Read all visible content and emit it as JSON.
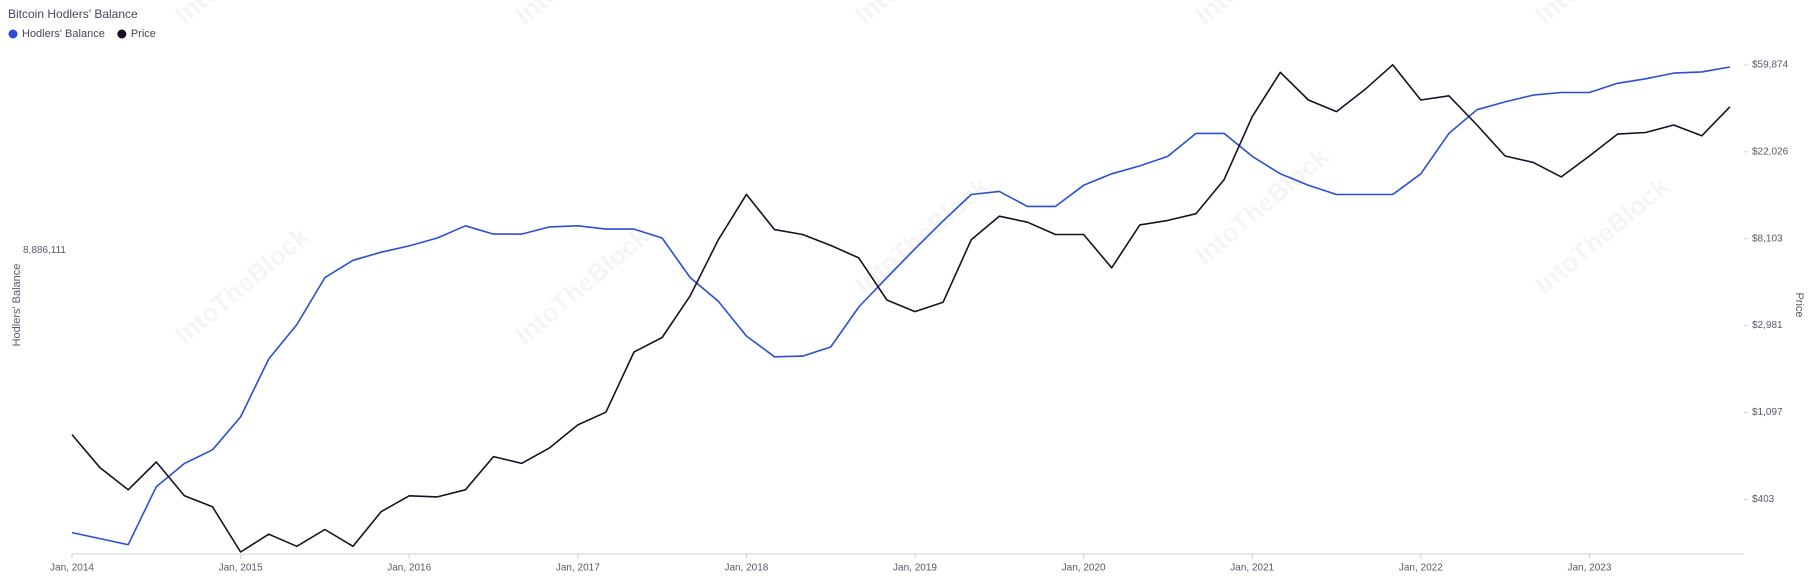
{
  "chart_data": {
    "type": "line",
    "title": "Bitcoin Hodlers' Balance",
    "watermark": "IntoTheBlock",
    "y_label": "Hodlers' Balance",
    "y2_label": "Price",
    "x": [
      "2014-01",
      "2014-03",
      "2014-05",
      "2014-07",
      "2014-09",
      "2014-11",
      "2015-01",
      "2015-03",
      "2015-05",
      "2015-07",
      "2015-09",
      "2015-11",
      "2016-01",
      "2016-03",
      "2016-05",
      "2016-07",
      "2016-09",
      "2016-11",
      "2017-01",
      "2017-03",
      "2017-05",
      "2017-07",
      "2017-09",
      "2017-11",
      "2018-01",
      "2018-03",
      "2018-05",
      "2018-07",
      "2018-09",
      "2018-11",
      "2019-01",
      "2019-03",
      "2019-05",
      "2019-07",
      "2019-09",
      "2019-11",
      "2020-01",
      "2020-03",
      "2020-05",
      "2020-07",
      "2020-09",
      "2020-11",
      "2021-01",
      "2021-03",
      "2021-05",
      "2021-07",
      "2021-09",
      "2021-11",
      "2022-01",
      "2022-03",
      "2022-05",
      "2022-07",
      "2022-09",
      "2022-11",
      "2023-01",
      "2023-03",
      "2023-05",
      "2023-07",
      "2023-09",
      "2023-11"
    ],
    "xlim": [
      "2014-01",
      "2023-12"
    ],
    "xticks": [
      {
        "value": "2014-01",
        "label": "Jan, 2014"
      },
      {
        "value": "2015-01",
        "label": "Jan, 2015"
      },
      {
        "value": "2016-01",
        "label": "Jan, 2016"
      },
      {
        "value": "2017-01",
        "label": "Jan, 2017"
      },
      {
        "value": "2018-01",
        "label": "Jan, 2018"
      },
      {
        "value": "2019-01",
        "label": "Jan, 2019"
      },
      {
        "value": "2020-01",
        "label": "Jan, 2020"
      },
      {
        "value": "2021-01",
        "label": "Jan, 2021"
      },
      {
        "value": "2022-01",
        "label": "Jan, 2022"
      },
      {
        "value": "2023-01",
        "label": "Jan, 2023"
      }
    ],
    "ylim": [
      4900000,
      13100000
    ],
    "ylog": true,
    "yticks": [
      {
        "value": 8886111,
        "label": "8,886,111"
      }
    ],
    "y2lim": [
      215,
      69500
    ],
    "y2log": true,
    "y2ticks": [
      {
        "value": 403,
        "label": "$403"
      },
      {
        "value": 1097,
        "label": "$1,097"
      },
      {
        "value": 2981,
        "label": "$2,981"
      },
      {
        "value": 8103,
        "label": "$8,103"
      },
      {
        "value": 22026,
        "label": "$22,026"
      },
      {
        "value": 59874,
        "label": "$59,874"
      }
    ],
    "grid": false,
    "legend": "top-left",
    "series": [
      {
        "name": "Hodlers' Balance",
        "color": "#2a4fd6",
        "axis": "y",
        "values": [
          5110000,
          5050000,
          4990000,
          5590000,
          5850000,
          6010000,
          6410000,
          7180000,
          7680000,
          8420000,
          8710000,
          8850000,
          8960000,
          9100000,
          9320000,
          9170000,
          9170000,
          9300000,
          9320000,
          9260000,
          9260000,
          9100000,
          8420000,
          8040000,
          7510000,
          7210000,
          7220000,
          7350000,
          7950000,
          8420000,
          8910000,
          9410000,
          9910000,
          9970000,
          9680000,
          9680000,
          10090000,
          10320000,
          10480000,
          10680000,
          11170000,
          11170000,
          10680000,
          10320000,
          10090000,
          9910000,
          9910000,
          9910000,
          10320000,
          11170000,
          11700000,
          11880000,
          12040000,
          12100000,
          12100000,
          12320000,
          12430000,
          12570000,
          12600000,
          12720000
        ]
      },
      {
        "name": "Price",
        "color": "#1a1026",
        "axis": "y2",
        "values": [
          850,
          580,
          450,
          620,
          420,
          370,
          220,
          270,
          235,
          285,
          235,
          350,
          420,
          415,
          450,
          660,
          610,
          730,
          950,
          1100,
          2200,
          2600,
          4200,
          8000,
          13500,
          9000,
          8500,
          7500,
          6500,
          4000,
          3500,
          3900,
          8000,
          10500,
          9800,
          8500,
          8500,
          5800,
          9500,
          10000,
          10800,
          16000,
          33000,
          55000,
          40000,
          35000,
          45000,
          60000,
          40000,
          42000,
          30000,
          21000,
          19500,
          16500,
          21000,
          27000,
          27500,
          30000,
          26500,
          37000
        ]
      }
    ]
  }
}
